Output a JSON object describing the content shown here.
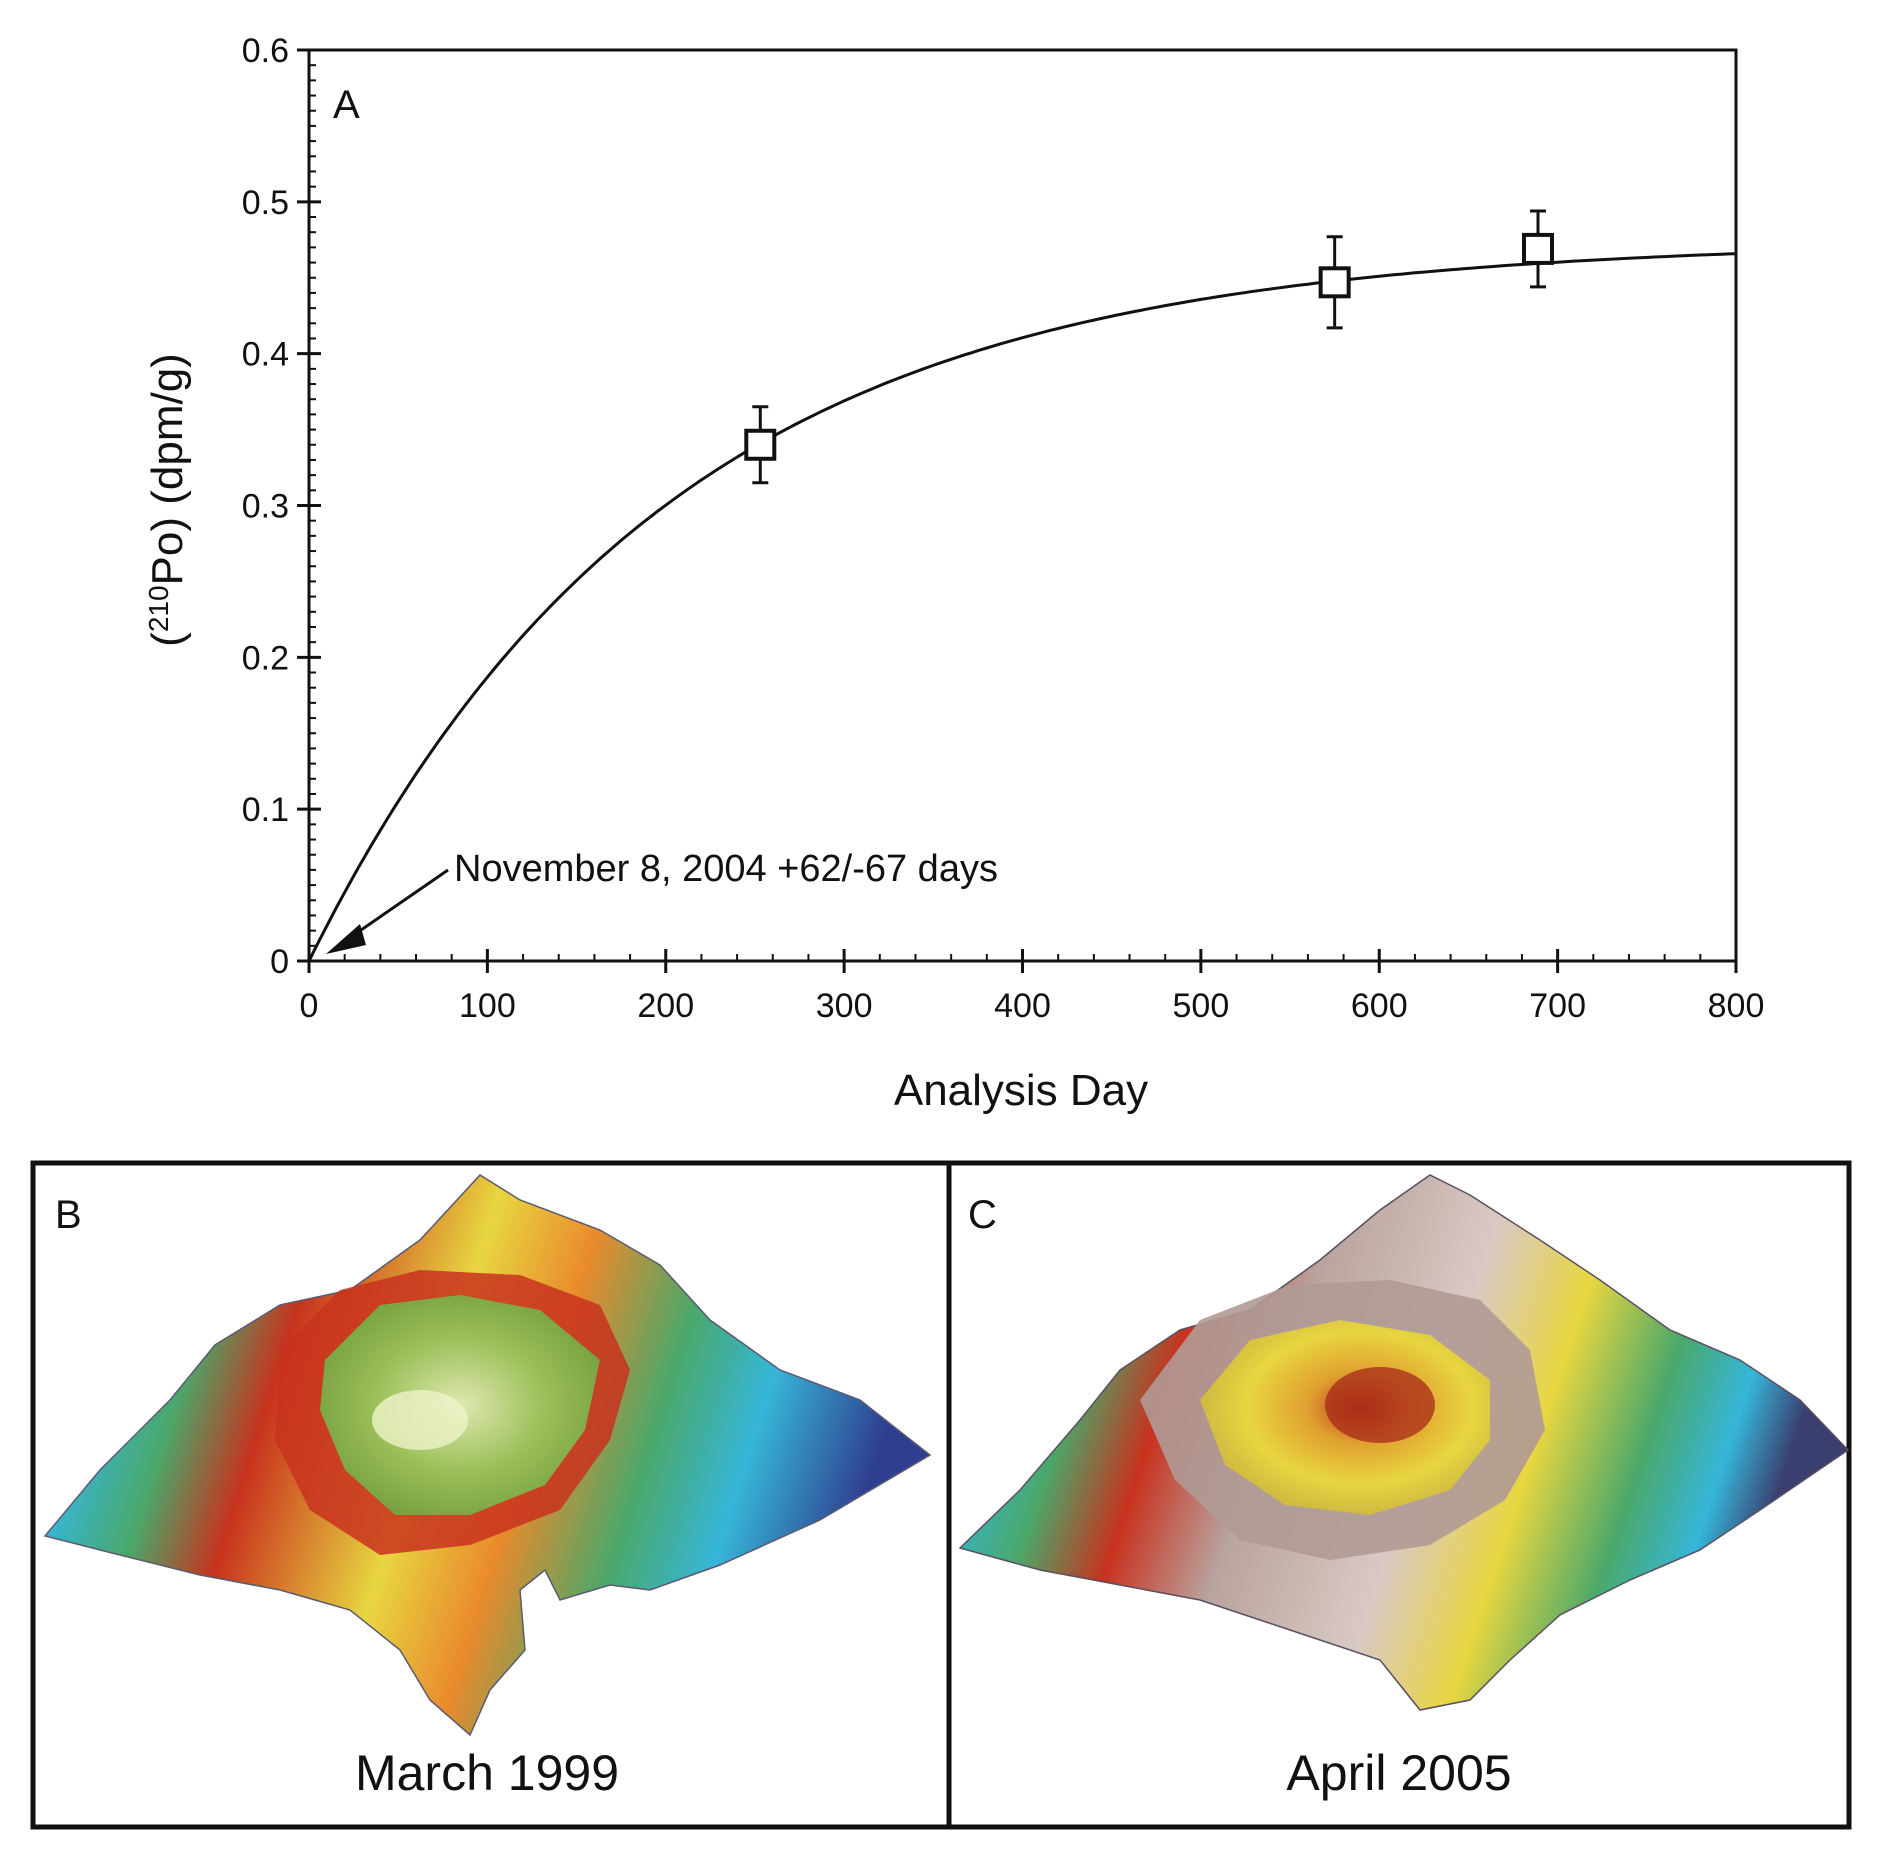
{
  "chart_data": {
    "type": "scatter",
    "panel_label": "A",
    "title": "",
    "xlabel": "Analysis Day",
    "ylabel_pre": "(",
    "ylabel_sup": "210",
    "ylabel_post": "Po) (dpm/g)",
    "xlim": [
      0,
      800
    ],
    "ylim": [
      0,
      0.6
    ],
    "xticks": [
      0,
      100,
      200,
      300,
      400,
      500,
      600,
      700,
      800
    ],
    "xtick_labels": [
      "0",
      "100",
      "200",
      "300",
      "400",
      "500",
      "600",
      "700",
      "800"
    ],
    "yticks": [
      0,
      0.1,
      0.2,
      0.3,
      0.4,
      0.5,
      0.6
    ],
    "ytick_labels": [
      "0",
      "0.1",
      "0.2",
      "0.3",
      "0.4",
      "0.5",
      "0.6"
    ],
    "points": [
      {
        "x": 253,
        "y": 0.34,
        "err": 0.025
      },
      {
        "x": 575,
        "y": 0.447,
        "err": 0.03
      },
      {
        "x": 689,
        "y": 0.469,
        "err": 0.025
      }
    ],
    "fit_curve": {
      "model": "ingrowth",
      "A_eq": 0.4745,
      "half_life_days": 138.4
    },
    "annotation": {
      "text": "November 8, 2004 +62/-67 days",
      "x": 0,
      "y": 0
    }
  },
  "panels": {
    "b": {
      "letter": "B",
      "caption": "March 1999"
    },
    "c": {
      "letter": "C",
      "caption": "April 2005"
    }
  },
  "colors": {
    "blue_deep": "#2f3f8f",
    "blue": "#3d6fc6",
    "cyan": "#36b6d9",
    "green": "#4aa86a",
    "yellow": "#e8d640",
    "orange": "#e98a2c",
    "red": "#c8321e",
    "gray_brown": "#8f7f7a"
  }
}
